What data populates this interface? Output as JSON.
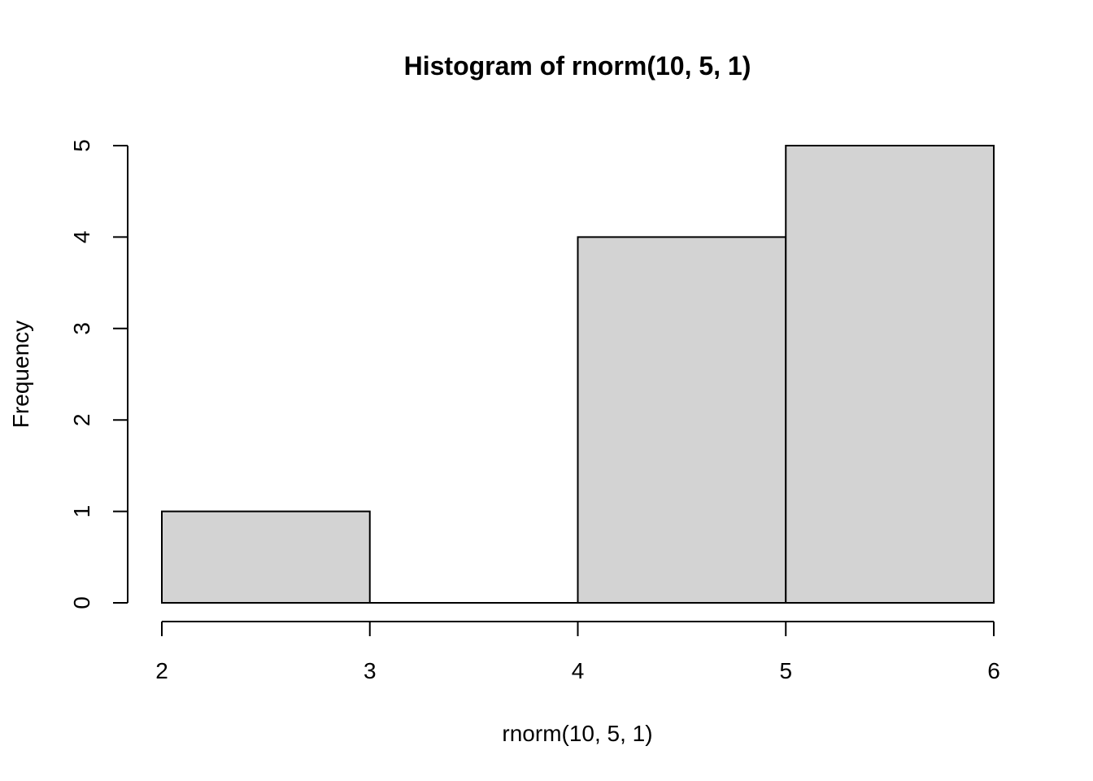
{
  "chart_data": {
    "type": "bar",
    "title": "Histogram of rnorm(10, 5, 1)",
    "xlabel": "rnorm(10, 5, 1)",
    "ylabel": "Frequency",
    "bins": [
      {
        "from": 2,
        "to": 3,
        "count": 1
      },
      {
        "from": 3,
        "to": 4,
        "count": 0
      },
      {
        "from": 4,
        "to": 5,
        "count": 4
      },
      {
        "from": 5,
        "to": 6,
        "count": 5
      }
    ],
    "xlim": [
      2,
      6
    ],
    "ylim": [
      0,
      5
    ],
    "x_ticks": [
      "2",
      "3",
      "4",
      "5",
      "6"
    ],
    "y_ticks": [
      "0",
      "1",
      "2",
      "3",
      "4",
      "5"
    ],
    "grid": false,
    "bar_color": "#d3d3d3",
    "edge_color": "#000000"
  }
}
